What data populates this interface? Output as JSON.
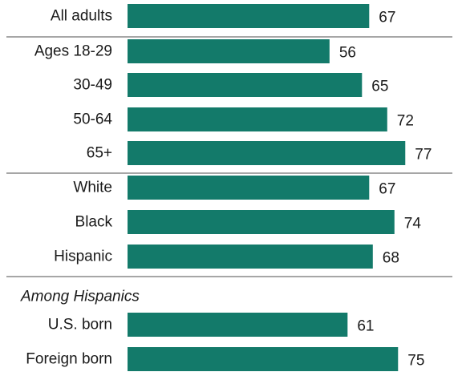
{
  "chart_data": {
    "type": "bar",
    "orientation": "horizontal",
    "bar_color": "#137a6a",
    "categories": [
      "All adults",
      "Ages 18-29",
      "30-49",
      "50-64",
      "65+",
      "White",
      "Black",
      "Hispanic",
      "U.S. born",
      "Foreign born"
    ],
    "values": [
      67,
      56,
      65,
      72,
      77,
      67,
      74,
      68,
      61,
      75
    ],
    "groups": [
      {
        "heading": "",
        "categories": [
          "All adults"
        ]
      },
      {
        "heading": "",
        "categories": [
          "Ages 18-29",
          "30-49",
          "50-64",
          "65+"
        ]
      },
      {
        "heading": "",
        "categories": [
          "White",
          "Black",
          "Hispanic"
        ]
      },
      {
        "heading": "Among Hispanics",
        "categories": [
          "U.S. born",
          "Foreign born"
        ]
      }
    ],
    "xlim": [
      0,
      100
    ],
    "grid": false,
    "legend": "none"
  }
}
